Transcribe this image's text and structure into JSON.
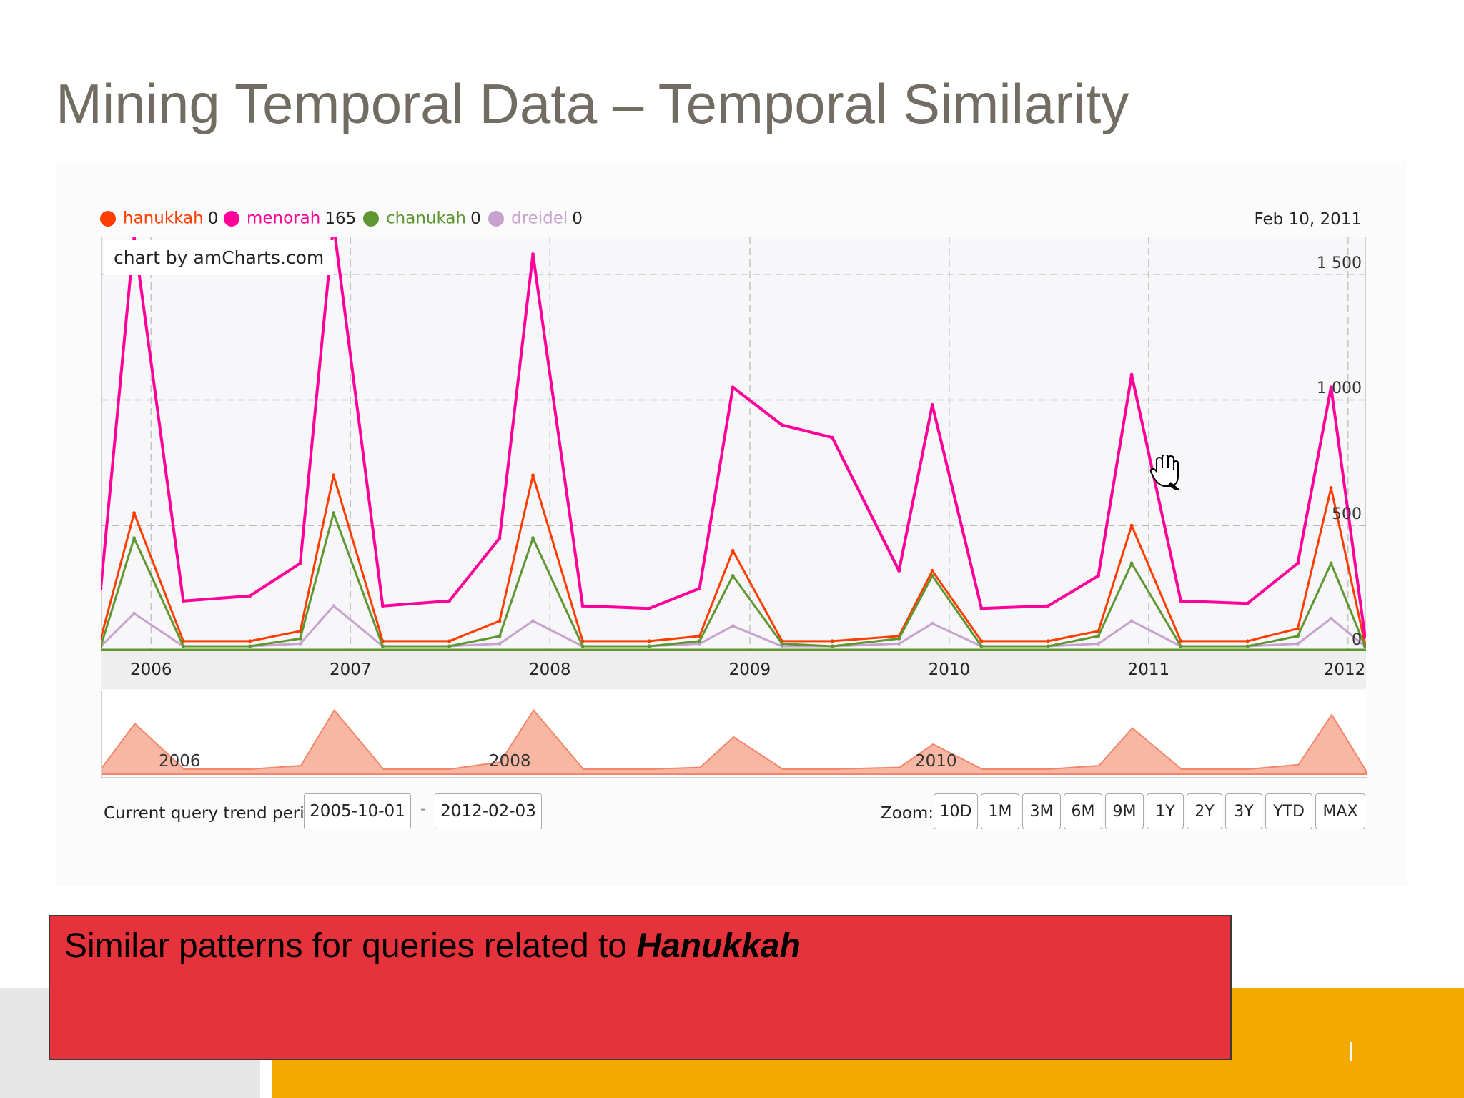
{
  "slide": {
    "title": "Mining Temporal Data – Temporal Similarity"
  },
  "colors": {
    "hanukkah": "#ff3d00",
    "menorah": "#ff0099",
    "chanukah": "#5e9732",
    "dreidel": "#c8a2cf",
    "title": "#736c63",
    "callout": "#e5323b",
    "footer_orange": "#f2a900"
  },
  "legend": [
    {
      "label": "hanukkah",
      "value": "0"
    },
    {
      "label": "menorah",
      "value": "165"
    },
    {
      "label": "chanukah",
      "value": "0"
    },
    {
      "label": "dreidel",
      "value": "0"
    }
  ],
  "date_readout": "Feb 10, 2011",
  "credit": "chart by amCharts.com",
  "navigator_labels": [
    "2006",
    "2008",
    "2010"
  ],
  "controls": {
    "period_label": "Current query trend period:",
    "start_date": "2005-10-01",
    "separator": "-",
    "end_date": "2012-02-03",
    "zoom_label": "Zoom:",
    "zoom_buttons": [
      "10D",
      "1M",
      "3M",
      "6M",
      "9M",
      "1Y",
      "2Y",
      "3Y",
      "YTD",
      "MAX"
    ]
  },
  "callout": {
    "text": "Similar patterns for queries related to ",
    "emphasis": "Hanukkah"
  },
  "chart_data": {
    "type": "line",
    "title": "",
    "xlabel": "",
    "ylabel": "",
    "ylim": [
      0,
      1650
    ],
    "yticks": [
      "0",
      "500",
      "1 000",
      "1 500"
    ],
    "xticks": [
      "2006",
      "2007",
      "2008",
      "2009",
      "2010",
      "2011",
      "2012"
    ],
    "xlim": [
      "2005-10-01",
      "2012-02-03"
    ],
    "grid": true,
    "legend_position": "top-left",
    "x": [
      "2005-10",
      "2005-12",
      "2006-03",
      "2006-07",
      "2006-10",
      "2006-12",
      "2007-03",
      "2007-07",
      "2007-10",
      "2007-12",
      "2008-03",
      "2008-07",
      "2008-10",
      "2008-12",
      "2009-03",
      "2009-06",
      "2009-10",
      "2009-12",
      "2010-03",
      "2010-07",
      "2010-10",
      "2010-12",
      "2011-03",
      "2011-07",
      "2011-10",
      "2011-12",
      "2012-02"
    ],
    "series": [
      {
        "name": "hanukkah",
        "values": [
          50,
          550,
          40,
          40,
          80,
          700,
          40,
          40,
          120,
          700,
          40,
          40,
          60,
          400,
          40,
          40,
          60,
          320,
          40,
          40,
          80,
          500,
          40,
          40,
          90,
          650,
          30
        ]
      },
      {
        "name": "menorah",
        "values": [
          250,
          1650,
          200,
          220,
          350,
          1700,
          180,
          200,
          450,
          1580,
          180,
          170,
          250,
          1050,
          900,
          850,
          320,
          980,
          170,
          180,
          300,
          1100,
          200,
          190,
          350,
          1050,
          60
        ]
      },
      {
        "name": "chanukah",
        "values": [
          20,
          450,
          20,
          20,
          50,
          550,
          20,
          20,
          60,
          450,
          20,
          20,
          40,
          300,
          30,
          20,
          50,
          300,
          20,
          20,
          60,
          350,
          20,
          20,
          60,
          350,
          20
        ]
      },
      {
        "name": "dreidel",
        "values": [
          20,
          150,
          20,
          20,
          30,
          180,
          20,
          20,
          30,
          120,
          20,
          20,
          30,
          100,
          20,
          20,
          30,
          110,
          20,
          20,
          30,
          120,
          20,
          20,
          30,
          130,
          20
        ]
      }
    ]
  }
}
